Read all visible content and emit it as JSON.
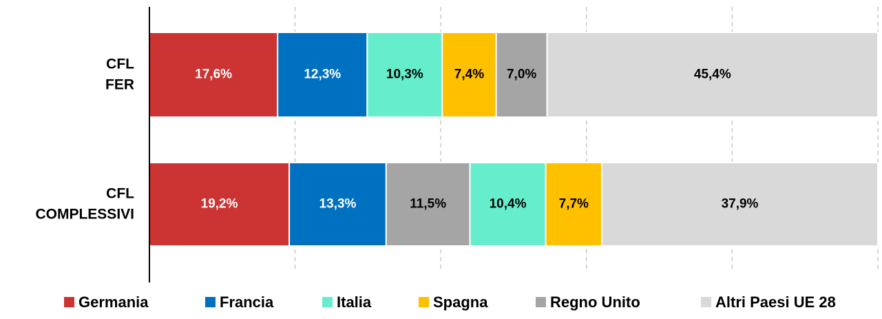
{
  "chart_data": {
    "type": "stacked-bar-horizontal",
    "categories": [
      "CFL FER",
      "CFL COMPLESSIVI"
    ],
    "series": [
      {
        "name": "Germania",
        "color": "#cc3333",
        "values": [
          17.6,
          19.2
        ],
        "value_labels": [
          "17,6%",
          "19,2%"
        ]
      },
      {
        "name": "Francia",
        "color": "#0070c0",
        "values": [
          12.3,
          13.3
        ],
        "value_labels": [
          "12,3%",
          "13,3%"
        ]
      },
      {
        "name": "Italia",
        "color": "#66eecc",
        "values": [
          10.3,
          10.4
        ],
        "value_labels": [
          "10,3%",
          "10,4%"
        ]
      },
      {
        "name": "Spagna",
        "color": "#ffc000",
        "values": [
          7.4,
          7.7
        ],
        "value_labels": [
          "7,4%",
          "7,7%"
        ]
      },
      {
        "name": "Regno Unito",
        "color": "#a5a5a5",
        "values": [
          7.0,
          11.5
        ],
        "value_labels": [
          "7,0%",
          "11,5%"
        ]
      },
      {
        "name": "Altri Paesi UE 28",
        "color": "#d9d9d9",
        "values": [
          45.4,
          37.9
        ],
        "value_labels": [
          "45,4%",
          "37,9%"
        ]
      }
    ],
    "stack_order": [
      [
        0,
        1,
        2,
        3,
        4,
        5
      ],
      [
        0,
        1,
        4,
        2,
        3,
        5
      ]
    ],
    "xlim": [
      0,
      100
    ],
    "xticks": [
      0,
      20,
      40,
      60,
      80,
      100
    ],
    "grid": true,
    "legend": "bottom"
  }
}
